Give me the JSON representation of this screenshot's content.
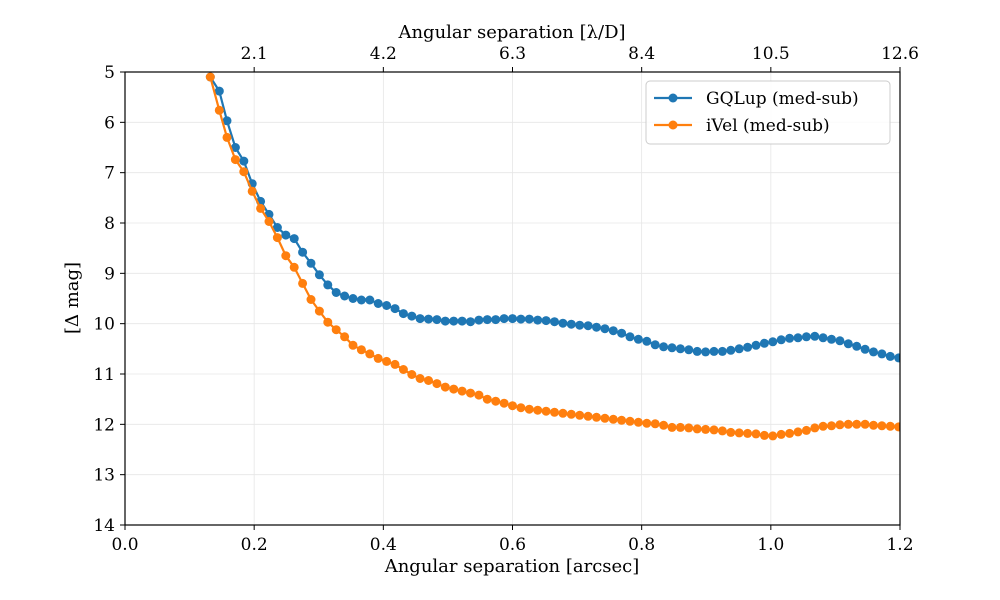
{
  "chart_data": {
    "type": "line",
    "xlabel": "Angular separation [arcsec]",
    "ylabel": "[Δ mag]",
    "top_xlabel": "Angular separation [λ/D]",
    "xlim": [
      0.0,
      1.2
    ],
    "ylim": [
      5,
      14
    ],
    "y_inverted": true,
    "grid": true,
    "legend_position": "top-right",
    "x_ticks": [
      "0.0",
      "0.2",
      "0.4",
      "0.6",
      "0.8",
      "1.0",
      "1.2"
    ],
    "y_ticks": [
      "5",
      "6",
      "7",
      "8",
      "9",
      "10",
      "11",
      "12",
      "13",
      "14"
    ],
    "top_x_ticks": [
      "2.1",
      "4.2",
      "6.3",
      "8.4",
      "10.5",
      "12.6"
    ],
    "series": [
      {
        "name": "GQLup (med-sub)",
        "color": "#1f77b4",
        "x": [
          0.132,
          0.146,
          0.158,
          0.171,
          0.184,
          0.197,
          0.21,
          0.223,
          0.236,
          0.249,
          0.262,
          0.275,
          0.288,
          0.301,
          0.314,
          0.327,
          0.34,
          0.353,
          0.366,
          0.379,
          0.392,
          0.405,
          0.418,
          0.431,
          0.444,
          0.457,
          0.47,
          0.483,
          0.496,
          0.509,
          0.522,
          0.535,
          0.548,
          0.561,
          0.574,
          0.587,
          0.6,
          0.613,
          0.626,
          0.639,
          0.652,
          0.665,
          0.678,
          0.691,
          0.704,
          0.717,
          0.73,
          0.743,
          0.756,
          0.769,
          0.782,
          0.795,
          0.808,
          0.821,
          0.834,
          0.847,
          0.86,
          0.873,
          0.886,
          0.899,
          0.912,
          0.925,
          0.938,
          0.951,
          0.964,
          0.977,
          0.99,
          1.003,
          1.016,
          1.029,
          1.042,
          1.055,
          1.068,
          1.081,
          1.094,
          1.107,
          1.12,
          1.133,
          1.146,
          1.159,
          1.172,
          1.185,
          1.198
        ],
        "y": [
          5.1,
          5.38,
          5.97,
          6.5,
          6.77,
          7.22,
          7.57,
          7.83,
          8.09,
          8.24,
          8.31,
          8.58,
          8.8,
          9.03,
          9.23,
          9.38,
          9.45,
          9.5,
          9.53,
          9.53,
          9.6,
          9.64,
          9.7,
          9.8,
          9.85,
          9.9,
          9.91,
          9.92,
          9.95,
          9.95,
          9.95,
          9.96,
          9.93,
          9.92,
          9.92,
          9.9,
          9.9,
          9.91,
          9.91,
          9.93,
          9.94,
          9.96,
          9.99,
          10.01,
          10.03,
          10.04,
          10.07,
          10.1,
          10.14,
          10.19,
          10.26,
          10.31,
          10.35,
          10.42,
          10.46,
          10.48,
          10.5,
          10.52,
          10.55,
          10.56,
          10.55,
          10.55,
          10.53,
          10.5,
          10.47,
          10.43,
          10.39,
          10.36,
          10.32,
          10.29,
          10.28,
          10.26,
          10.25,
          10.28,
          10.31,
          10.34,
          10.4,
          10.45,
          10.51,
          10.56,
          10.6,
          10.65,
          10.68
        ]
      },
      {
        "name": "iVel (med-sub)",
        "color": "#ff7f0e",
        "x": [
          0.132,
          0.146,
          0.158,
          0.171,
          0.184,
          0.197,
          0.21,
          0.223,
          0.236,
          0.249,
          0.262,
          0.275,
          0.288,
          0.301,
          0.314,
          0.327,
          0.34,
          0.353,
          0.366,
          0.379,
          0.392,
          0.405,
          0.418,
          0.431,
          0.444,
          0.457,
          0.47,
          0.483,
          0.496,
          0.509,
          0.522,
          0.535,
          0.548,
          0.561,
          0.574,
          0.587,
          0.6,
          0.613,
          0.626,
          0.639,
          0.652,
          0.665,
          0.678,
          0.691,
          0.704,
          0.717,
          0.73,
          0.743,
          0.756,
          0.769,
          0.782,
          0.795,
          0.808,
          0.821,
          0.834,
          0.847,
          0.86,
          0.873,
          0.886,
          0.899,
          0.912,
          0.925,
          0.938,
          0.951,
          0.964,
          0.977,
          0.99,
          1.003,
          1.016,
          1.029,
          1.042,
          1.055,
          1.068,
          1.081,
          1.094,
          1.107,
          1.12,
          1.133,
          1.146,
          1.159,
          1.172,
          1.185,
          1.198
        ],
        "y": [
          5.1,
          5.76,
          6.3,
          6.74,
          6.98,
          7.37,
          7.71,
          7.97,
          8.29,
          8.65,
          8.88,
          9.2,
          9.52,
          9.75,
          9.97,
          10.12,
          10.26,
          10.43,
          10.52,
          10.6,
          10.69,
          10.75,
          10.81,
          10.91,
          11.01,
          11.09,
          11.13,
          11.19,
          11.26,
          11.3,
          11.34,
          11.38,
          11.42,
          11.5,
          11.54,
          11.58,
          11.63,
          11.67,
          11.7,
          11.72,
          11.74,
          11.76,
          11.78,
          11.8,
          11.82,
          11.84,
          11.86,
          11.88,
          11.9,
          11.92,
          11.94,
          11.96,
          11.98,
          11.99,
          12.02,
          12.06,
          12.06,
          12.07,
          12.09,
          12.1,
          12.11,
          12.13,
          12.16,
          12.17,
          12.18,
          12.19,
          12.22,
          12.23,
          12.2,
          12.18,
          12.15,
          12.12,
          12.07,
          12.04,
          12.03,
          12.01,
          12.0,
          12.0,
          12.0,
          12.02,
          12.03,
          12.04,
          12.05
        ]
      }
    ]
  }
}
